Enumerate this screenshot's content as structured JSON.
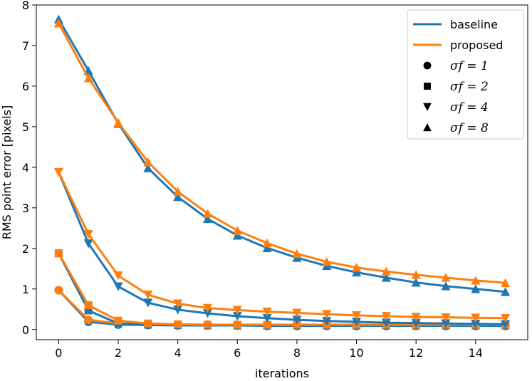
{
  "chart_data": {
    "type": "line",
    "title": "",
    "xlabel": "iterations",
    "ylabel": "RMS point error [pixels]",
    "xlim": [
      -0.75,
      15.75
    ],
    "ylim": [
      -0.25,
      8.0
    ],
    "xticks": [
      0,
      2,
      4,
      6,
      8,
      10,
      12,
      14
    ],
    "yticks": [
      0,
      1,
      2,
      3,
      4,
      5,
      6,
      7,
      8
    ],
    "x": [
      0,
      1,
      2,
      3,
      4,
      5,
      6,
      7,
      8,
      9,
      10,
      11,
      12,
      13,
      14,
      15
    ],
    "colors": {
      "baseline": "#1f77b4",
      "proposed": "#ff7f0e"
    },
    "series": [
      {
        "name": "baseline",
        "sigma_label": "1",
        "marker": "circle",
        "values": [
          0.97,
          0.19,
          0.12,
          0.11,
          0.1,
          0.1,
          0.1,
          0.09,
          0.09,
          0.09,
          0.09,
          0.09,
          0.09,
          0.09,
          0.09,
          0.09
        ]
      },
      {
        "name": "proposed",
        "sigma_label": "1",
        "marker": "circle",
        "values": [
          0.97,
          0.24,
          0.15,
          0.13,
          0.12,
          0.12,
          0.11,
          0.11,
          0.11,
          0.11,
          0.11,
          0.11,
          0.11,
          0.11,
          0.11,
          0.11
        ]
      },
      {
        "name": "baseline",
        "sigma_label": "2",
        "marker": "square",
        "values": [
          1.88,
          0.47,
          0.15,
          0.12,
          0.11,
          0.1,
          0.1,
          0.1,
          0.1,
          0.1,
          0.1,
          0.1,
          0.1,
          0.1,
          0.1,
          0.1
        ]
      },
      {
        "name": "proposed",
        "sigma_label": "2",
        "marker": "square",
        "values": [
          1.88,
          0.6,
          0.22,
          0.15,
          0.13,
          0.12,
          0.12,
          0.12,
          0.12,
          0.12,
          0.12,
          0.12,
          0.12,
          0.12,
          0.12,
          0.12
        ]
      },
      {
        "name": "baseline",
        "sigma_label": "4",
        "marker": "triangle-down",
        "values": [
          3.88,
          2.12,
          1.06,
          0.66,
          0.49,
          0.4,
          0.33,
          0.28,
          0.24,
          0.21,
          0.19,
          0.17,
          0.16,
          0.15,
          0.14,
          0.13
        ]
      },
      {
        "name": "proposed",
        "sigma_label": "4",
        "marker": "triangle-down",
        "values": [
          3.88,
          2.35,
          1.33,
          0.86,
          0.64,
          0.53,
          0.48,
          0.44,
          0.41,
          0.38,
          0.35,
          0.33,
          0.31,
          0.3,
          0.29,
          0.28
        ]
      },
      {
        "name": "baseline",
        "sigma_label": "8",
        "marker": "triangle-up",
        "values": [
          7.65,
          6.38,
          5.08,
          3.98,
          3.27,
          2.73,
          2.32,
          2.01,
          1.77,
          1.57,
          1.41,
          1.28,
          1.16,
          1.07,
          1.0,
          0.93
        ]
      },
      {
        "name": "proposed",
        "sigma_label": "8",
        "marker": "triangle-up",
        "values": [
          7.55,
          6.2,
          5.1,
          4.13,
          3.4,
          2.86,
          2.44,
          2.13,
          1.87,
          1.67,
          1.53,
          1.43,
          1.35,
          1.28,
          1.21,
          1.15
        ]
      }
    ],
    "legend": {
      "position": "top-right",
      "line_entries": [
        "baseline",
        "proposed"
      ],
      "marker_entries": [
        {
          "marker": "circle",
          "label": "σf = 1"
        },
        {
          "marker": "square",
          "label": "σf = 2"
        },
        {
          "marker": "triangle-down",
          "label": "σf = 4"
        },
        {
          "marker": "triangle-up",
          "label": "σf = 8"
        }
      ]
    }
  }
}
